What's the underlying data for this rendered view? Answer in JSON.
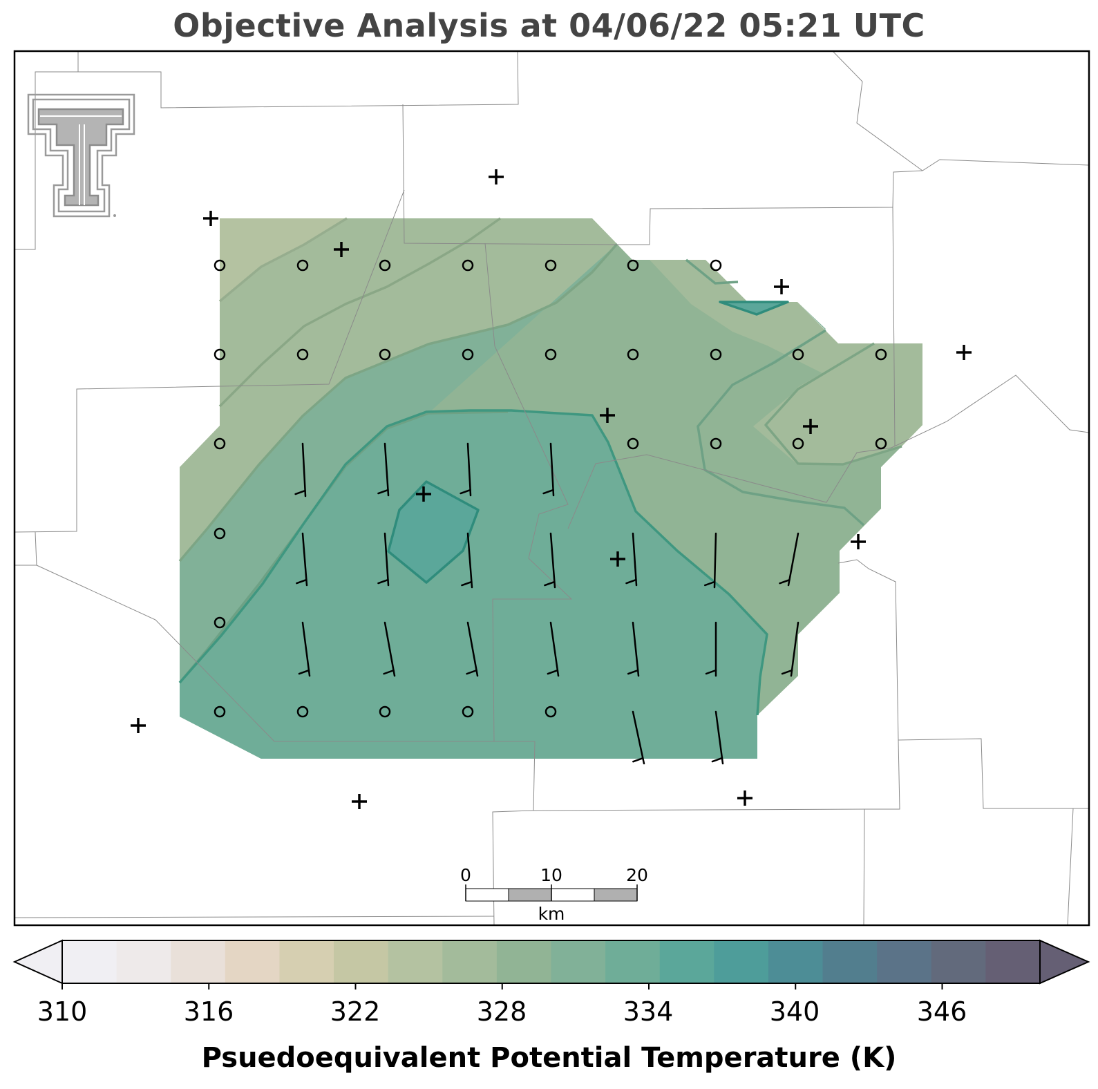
{
  "title": "Objective Analysis at 04/06/22 05:21 UTC",
  "colorbar": {
    "label": "Psuedoequivalent Potential Temperature (K)",
    "ticks": [
      "310",
      "316",
      "322",
      "328",
      "334",
      "340",
      "346"
    ],
    "colors": [
      "#f0eff3",
      "#eeeaea",
      "#e9e0d9",
      "#e4d6c4",
      "#d6cfb1",
      "#c5c7a4",
      "#b4c2a1",
      "#a3bb9b",
      "#91b495",
      "#81b198",
      "#6fad98",
      "#5ba79a",
      "#4e9d9a",
      "#4d8d96",
      "#527e8e",
      "#5b7388",
      "#626a7c",
      "#655f74"
    ],
    "extend_low": "#f0eff3",
    "extend_high": "#655f74"
  },
  "scalebar": {
    "labels": [
      "0",
      "10",
      "20"
    ],
    "unit": "km"
  },
  "colors": {
    "title": "#444444",
    "county_lines": "#8a8a8a",
    "frame": "#000000",
    "logo": "#9a9a9a"
  },
  "legend_icons": {
    "logo": "texas-tech-double-t-logo",
    "station": "plus-marker",
    "calm": "circle-marker",
    "wind": "wind-barb"
  }
}
